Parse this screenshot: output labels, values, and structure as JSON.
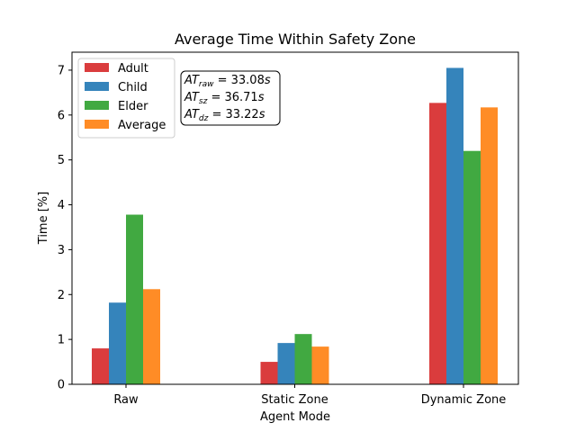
{
  "chart_data": {
    "type": "bar",
    "title": "Average Time Within Safety Zone",
    "xlabel": "Agent Mode",
    "ylabel": "Time [%]",
    "categories": [
      "Raw",
      "Static Zone",
      "Dynamic Zone"
    ],
    "ylim": [
      0,
      7.4
    ],
    "yticks": [
      0,
      1,
      2,
      3,
      4,
      5,
      6,
      7
    ],
    "grid": false,
    "legend_position": "top-left",
    "series": [
      {
        "name": "Adult",
        "color": "#d62728",
        "values": [
          0.8,
          0.5,
          6.27
        ]
      },
      {
        "name": "Child",
        "color": "#1f77b4",
        "values": [
          1.82,
          0.92,
          7.05
        ]
      },
      {
        "name": "Elder",
        "color": "#2ca02c",
        "values": [
          3.78,
          1.12,
          5.2
        ]
      },
      {
        "name": "Average",
        "color": "#ff7f0e",
        "values": [
          2.12,
          0.84,
          6.17
        ]
      }
    ],
    "annotation": {
      "lines": [
        {
          "base": "AT",
          "sub": "raw",
          "value": " = 33.08",
          "unit": "s"
        },
        {
          "base": "AT",
          "sub": "sz",
          "value": " = 36.71",
          "unit": "s"
        },
        {
          "base": "AT",
          "sub": "dz",
          "value": " = 33.22",
          "unit": "s"
        }
      ]
    }
  }
}
